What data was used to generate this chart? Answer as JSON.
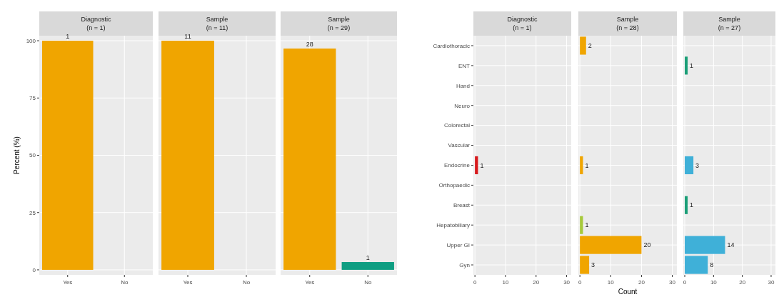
{
  "chart_data": [
    {
      "type": "bar",
      "title": "Diagnostic",
      "subtitle": "(n = 1)",
      "ylabel": "Percent (%)",
      "categories": [
        "Yes",
        "No"
      ],
      "values": [
        100,
        null
      ],
      "colors": [
        "#f0a500",
        null
      ],
      "annotations": [
        {
          "text": "1",
          "x": "Yes",
          "y": 100
        }
      ],
      "ylim": [
        -2.2,
        102.2
      ],
      "yticks": [
        0,
        25,
        50,
        75,
        100
      ],
      "grid": true
    },
    {
      "type": "bar",
      "title": "Sample",
      "subtitle": "(n = 11)",
      "categories": [
        "Yes",
        "No"
      ],
      "values": [
        100,
        null
      ],
      "colors": [
        "#f0a500",
        null
      ],
      "annotations": [
        {
          "text": "11",
          "x": "Yes",
          "y": 100
        }
      ],
      "ylim": [
        -2.2,
        102.2
      ],
      "yticks": [
        0,
        25,
        50,
        75,
        100
      ],
      "grid": true,
      "tick_labels": "x"
    },
    {
      "type": "bar",
      "title": "Sample",
      "subtitle": "(n = 29)",
      "categories": [
        "Yes",
        "No"
      ],
      "values": [
        96.6,
        3.4
      ],
      "colors": [
        "#f0a500",
        "#0e9e82"
      ],
      "annotations": [
        {
          "text": "28",
          "x": "Yes",
          "y": 96.6
        },
        {
          "text": "1",
          "x": "No",
          "y": 3.4
        }
      ],
      "ylim": [
        -2.2,
        102.2
      ],
      "yticks": [
        0,
        25,
        50,
        75,
        100
      ],
      "grid": true,
      "tick_labels": "x"
    },
    {
      "type": "bar",
      "orientation": "horizontal",
      "title": "Diagnostic",
      "subtitle": "(n = 1)",
      "categories": [
        "Cardiothoracic",
        "ENT",
        "Hand",
        "Neuro",
        "Colorectal",
        "Vascular",
        "Endocrine",
        "Orthopaedic",
        "Breast",
        "Hepatobiliary",
        "Upper GI",
        "Gyn"
      ],
      "values": [
        null,
        null,
        null,
        null,
        null,
        null,
        1,
        null,
        null,
        null,
        null,
        null
      ],
      "colors": [
        null,
        null,
        null,
        null,
        null,
        null,
        "#d7191c",
        null,
        null,
        null,
        null,
        null
      ],
      "value_labels": [
        null,
        null,
        null,
        null,
        null,
        null,
        "1",
        null,
        null,
        null,
        null,
        null
      ],
      "xlim": [
        -0.5,
        31.5
      ],
      "xticks": [
        0,
        10,
        20,
        30
      ],
      "grid": true
    },
    {
      "type": "bar",
      "orientation": "horizontal",
      "title": "Sample",
      "subtitle": "(n = 28)",
      "xlabel": "Count",
      "categories": [
        "Cardiothoracic",
        "ENT",
        "Hand",
        "Neuro",
        "Colorectal",
        "Vascular",
        "Endocrine",
        "Orthopaedic",
        "Breast",
        "Hepatobiliary",
        "Upper GI",
        "Gyn"
      ],
      "values": [
        2,
        null,
        null,
        null,
        null,
        null,
        1,
        null,
        null,
        1,
        20,
        3
      ],
      "colors": [
        "#f0a500",
        null,
        null,
        null,
        null,
        null,
        "#f0a500",
        null,
        null,
        "#a6c93a",
        "#f0a500",
        "#f0a500"
      ],
      "value_labels": [
        "2",
        null,
        null,
        null,
        null,
        null,
        "1",
        null,
        null,
        "1",
        "20",
        "3"
      ],
      "xlim": [
        -0.5,
        31.5
      ],
      "xticks": [
        0,
        10,
        20,
        30
      ],
      "grid": true,
      "tick_labels": "x"
    },
    {
      "type": "bar",
      "orientation": "horizontal",
      "title": "Sample",
      "subtitle": "(n = 27)",
      "categories": [
        "Cardiothoracic",
        "ENT",
        "Hand",
        "Neuro",
        "Colorectal",
        "Vascular",
        "Endocrine",
        "Orthopaedic",
        "Breast",
        "Hepatobiliary",
        "Upper GI",
        "Gyn"
      ],
      "values": [
        null,
        1,
        null,
        null,
        null,
        null,
        3,
        null,
        1,
        null,
        14,
        8
      ],
      "colors": [
        null,
        "#1a9e77",
        null,
        null,
        null,
        null,
        "#3fb0d8",
        null,
        "#1a9e77",
        null,
        "#3fb0d8",
        "#3fb0d8"
      ],
      "value_labels": [
        null,
        "1",
        null,
        null,
        null,
        null,
        "3",
        null,
        "1",
        null,
        "14",
        "8"
      ],
      "xlim": [
        -0.5,
        31.5
      ],
      "xticks": [
        0,
        10,
        20,
        30
      ],
      "grid": true,
      "tick_labels": "x"
    }
  ]
}
